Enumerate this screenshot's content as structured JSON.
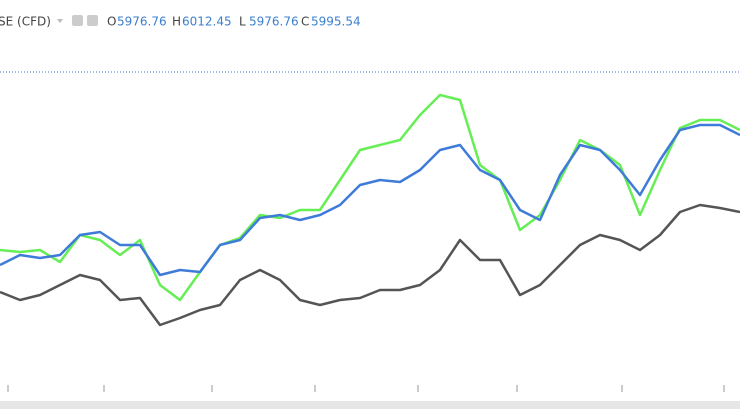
{
  "header": {
    "symbol": "SE (CFD)",
    "ohlc": [
      {
        "key": "O",
        "value": "5976.76"
      },
      {
        "key": "H",
        "value": "6012.45"
      },
      {
        "key": "L",
        "value": "5976.76"
      },
      {
        "key": "C",
        "value": "5995.54"
      }
    ]
  },
  "chart_data": {
    "type": "line",
    "ylim": [
      0,
      400
    ],
    "series": [
      {
        "color": "#66ee55",
        "values": [
          150,
          148,
          150,
          138,
          165,
          160,
          145,
          160,
          115,
          100,
          128,
          155,
          162,
          185,
          182,
          190,
          190,
          220,
          250,
          255,
          260,
          285,
          305,
          300,
          235,
          220,
          170,
          185,
          220,
          260,
          250,
          235,
          185,
          230,
          272,
          280,
          280,
          270
        ]
      },
      {
        "color": "#3f7bd8",
        "values": [
          135,
          145,
          142,
          145,
          165,
          168,
          155,
          155,
          125,
          130,
          128,
          155,
          160,
          182,
          185,
          180,
          185,
          195,
          215,
          220,
          218,
          230,
          250,
          255,
          230,
          220,
          190,
          180,
          225,
          255,
          250,
          230,
          205,
          240,
          270,
          275,
          275,
          265
        ]
      },
      {
        "color": "#555555",
        "values": [
          108,
          100,
          105,
          115,
          125,
          120,
          100,
          102,
          75,
          82,
          90,
          95,
          120,
          130,
          120,
          100,
          95,
          100,
          102,
          110,
          110,
          115,
          130,
          160,
          140,
          140,
          105,
          115,
          135,
          155,
          165,
          160,
          150,
          165,
          188,
          195,
          192,
          188
        ]
      }
    ]
  }
}
